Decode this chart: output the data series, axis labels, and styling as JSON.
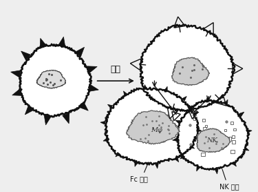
{
  "background": "#eeeeee",
  "arrow_label": "抗体",
  "label_fc": "Fc 受体",
  "label_nk": "NK 受体",
  "label_mo": "Mφ",
  "label_nk_cell": "NK",
  "cell_color": "#ffffff",
  "cell_edge": "#111111",
  "fig_width": 3.75,
  "fig_height": 2.78,
  "dpi": 100
}
